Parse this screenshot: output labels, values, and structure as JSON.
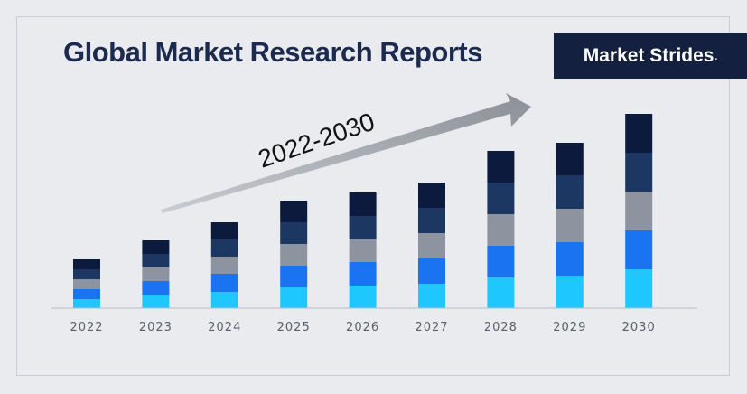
{
  "header": {
    "title": "Global Market Research Reports",
    "brand": "Market Strides",
    "brand_mark": "."
  },
  "chart_data": {
    "type": "bar",
    "stacked": true,
    "categories": [
      "2022",
      "2023",
      "2024",
      "2025",
      "2026",
      "2027",
      "2028",
      "2029",
      "2030"
    ],
    "series": [
      {
        "color": "#1ec8ff",
        "values": [
          10,
          15,
          18,
          23,
          25,
          27,
          34,
          36,
          43
        ]
      },
      {
        "color": "#1a73f0",
        "values": [
          11,
          15,
          20,
          24,
          26,
          28,
          35,
          37,
          43
        ]
      },
      {
        "color": "#8d939f",
        "values": [
          11,
          15,
          19,
          24,
          25,
          28,
          35,
          37,
          43
        ]
      },
      {
        "color": "#1d3763",
        "values": [
          11,
          15,
          19,
          24,
          26,
          28,
          35,
          37,
          43
        ]
      },
      {
        "color": "#0c1a3d",
        "values": [
          11,
          15,
          19,
          24,
          26,
          28,
          35,
          36,
          43
        ]
      }
    ],
    "annotation": "2022-2030",
    "ylim": [
      0,
      230
    ],
    "grid": false,
    "legend": "none"
  }
}
